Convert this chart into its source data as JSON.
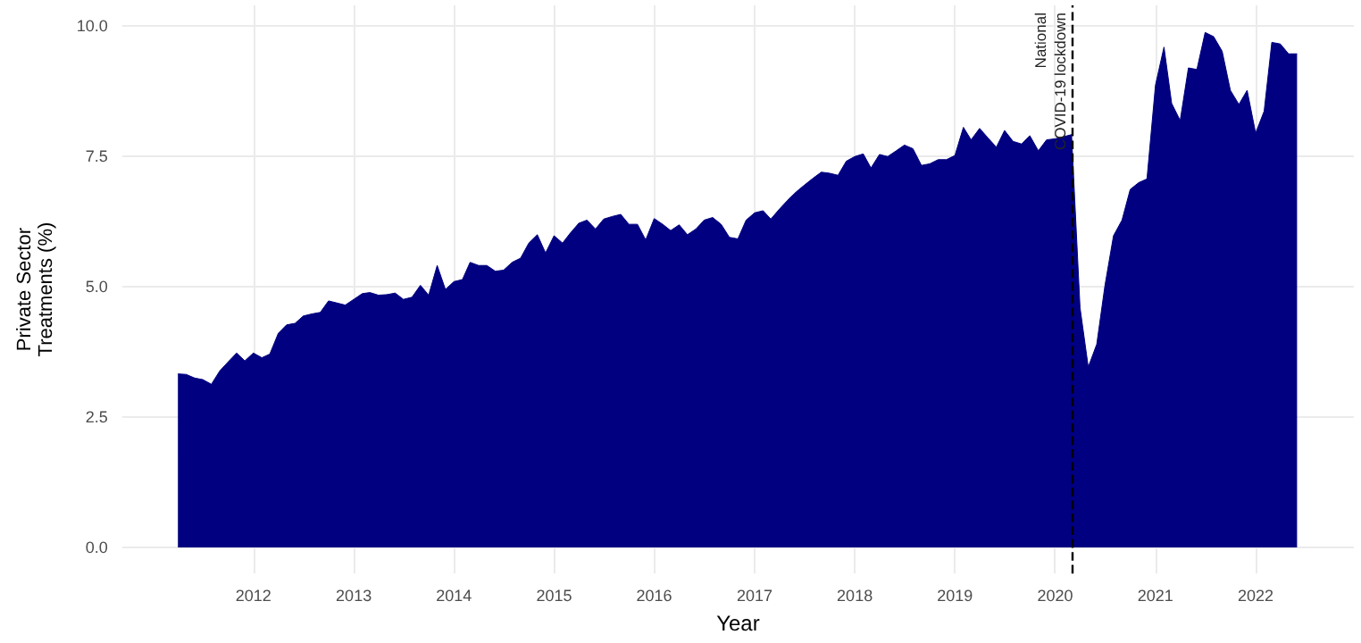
{
  "chart_data": {
    "type": "area",
    "xlabel": "Year",
    "ylabel": "Private Sector\nTreatments (%)",
    "x": [
      "2011-04",
      "2011-05",
      "2011-06",
      "2011-07",
      "2011-08",
      "2011-09",
      "2011-10",
      "2011-11",
      "2011-12",
      "2012-01",
      "2012-02",
      "2012-03",
      "2012-04",
      "2012-05",
      "2012-06",
      "2012-07",
      "2012-08",
      "2012-09",
      "2012-10",
      "2012-11",
      "2012-12",
      "2013-01",
      "2013-02",
      "2013-03",
      "2013-04",
      "2013-05",
      "2013-06",
      "2013-07",
      "2013-08",
      "2013-09",
      "2013-10",
      "2013-11",
      "2013-12",
      "2014-01",
      "2014-02",
      "2014-03",
      "2014-04",
      "2014-05",
      "2014-06",
      "2014-07",
      "2014-08",
      "2014-09",
      "2014-10",
      "2014-11",
      "2014-12",
      "2015-01",
      "2015-02",
      "2015-03",
      "2015-04",
      "2015-05",
      "2015-06",
      "2015-07",
      "2015-08",
      "2015-09",
      "2015-10",
      "2015-11",
      "2015-12",
      "2016-01",
      "2016-02",
      "2016-03",
      "2016-04",
      "2016-05",
      "2016-06",
      "2016-07",
      "2016-08",
      "2016-09",
      "2016-10",
      "2016-11",
      "2016-12",
      "2017-01",
      "2017-02",
      "2017-03",
      "2017-04",
      "2017-05",
      "2017-06",
      "2017-07",
      "2017-08",
      "2017-09",
      "2017-10",
      "2017-11",
      "2017-12",
      "2018-01",
      "2018-02",
      "2018-03",
      "2018-04",
      "2018-05",
      "2018-06",
      "2018-07",
      "2018-08",
      "2018-09",
      "2018-10",
      "2018-11",
      "2018-12",
      "2019-01",
      "2019-02",
      "2019-03",
      "2019-04",
      "2019-05",
      "2019-06",
      "2019-07",
      "2019-08",
      "2019-09",
      "2019-10",
      "2019-11",
      "2019-12",
      "2020-01",
      "2020-02",
      "2020-03",
      "2020-04",
      "2020-05",
      "2020-06",
      "2020-07",
      "2020-08",
      "2020-09",
      "2020-10",
      "2020-11",
      "2020-12",
      "2021-01",
      "2021-02",
      "2021-03",
      "2021-04",
      "2021-05",
      "2021-06",
      "2021-07",
      "2021-08",
      "2021-09",
      "2021-10",
      "2021-11",
      "2021-12",
      "2022-01",
      "2022-02",
      "2022-03",
      "2022-04",
      "2022-05",
      "2022-06"
    ],
    "values": [
      3.33,
      3.32,
      3.25,
      3.22,
      3.13,
      3.39,
      3.56,
      3.73,
      3.58,
      3.73,
      3.64,
      3.71,
      4.11,
      4.27,
      4.3,
      4.44,
      4.48,
      4.51,
      4.73,
      4.69,
      4.65,
      4.76,
      4.87,
      4.89,
      4.84,
      4.85,
      4.88,
      4.76,
      4.8,
      5.03,
      4.84,
      5.41,
      4.95,
      5.1,
      5.14,
      5.47,
      5.41,
      5.41,
      5.3,
      5.32,
      5.47,
      5.55,
      5.84,
      6.0,
      5.65,
      5.98,
      5.84,
      6.03,
      6.22,
      6.28,
      6.11,
      6.3,
      6.35,
      6.39,
      6.2,
      6.2,
      5.9,
      6.31,
      6.2,
      6.08,
      6.19,
      6.0,
      6.11,
      6.28,
      6.33,
      6.2,
      5.95,
      5.92,
      6.28,
      6.42,
      6.46,
      6.3,
      6.49,
      6.66,
      6.82,
      6.95,
      7.08,
      7.2,
      7.18,
      7.14,
      7.41,
      7.5,
      7.55,
      7.28,
      7.54,
      7.5,
      7.61,
      7.72,
      7.65,
      7.33,
      7.36,
      7.44,
      7.44,
      7.52,
      8.06,
      7.82,
      8.04,
      7.86,
      7.68,
      8.0,
      7.79,
      7.74,
      7.9,
      7.61,
      7.82,
      7.84,
      7.88,
      7.92,
      4.6,
      3.46,
      3.9,
      5.03,
      5.98,
      6.28,
      6.87,
      7.0,
      7.07,
      8.87,
      9.6,
      8.52,
      8.19,
      9.2,
      9.17,
      9.88,
      9.8,
      9.52,
      8.77,
      8.5,
      8.77,
      7.95,
      8.37,
      9.69,
      9.66,
      9.47,
      9.47
    ],
    "color": "#000080",
    "marker": "none",
    "grid": true,
    "xlim": [
      "2010-09-10",
      "2022-12-25"
    ],
    "xticks": [
      {
        "value": "2012",
        "label": "2012"
      },
      {
        "value": "2013",
        "label": "2013"
      },
      {
        "value": "2014",
        "label": "2014"
      },
      {
        "value": "2015",
        "label": "2015"
      },
      {
        "value": "2016",
        "label": "2016"
      },
      {
        "value": "2017",
        "label": "2017"
      },
      {
        "value": "2018",
        "label": "2018"
      },
      {
        "value": "2019",
        "label": "2019"
      },
      {
        "value": "2020",
        "label": "2020"
      },
      {
        "value": "2021",
        "label": "2021"
      },
      {
        "value": "2022",
        "label": "2022"
      }
    ],
    "ylim": [
      -0.5,
      10.4
    ],
    "yticks": [
      {
        "value": 0,
        "label": "0.0"
      },
      {
        "value": 2.5,
        "label": "2.5"
      },
      {
        "value": 5,
        "label": "5.0"
      },
      {
        "value": 7.5,
        "label": "7.5"
      },
      {
        "value": 10,
        "label": "10.0"
      }
    ],
    "ref_lines": [
      {
        "axis": "x",
        "value": "2020-03",
        "label": "National\nCOVID-19 lockdown",
        "color": "#000000",
        "line_style": "dashed"
      }
    ]
  }
}
